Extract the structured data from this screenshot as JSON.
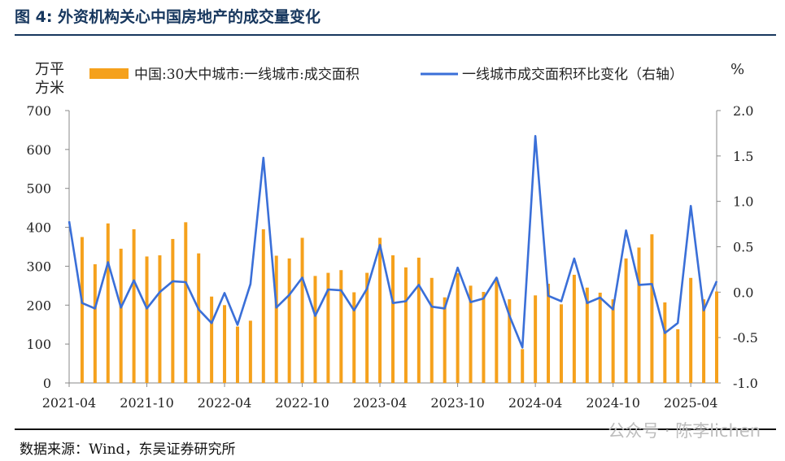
{
  "figure": {
    "title": "图 4:  外资机构关心中国房地产的成交量变化",
    "source": "数据来源：Wind，东吴证券研究所",
    "watermark": "公众号 · 陈李lichen"
  },
  "chart_data": {
    "type": "bar+line",
    "left_unit": [
      "万平",
      "方米"
    ],
    "right_unit": "%",
    "left_ylim": [
      0,
      700
    ],
    "left_ticks": [
      0,
      100,
      200,
      300,
      400,
      500,
      600,
      700
    ],
    "right_ylim": [
      -1.0,
      2.0
    ],
    "right_ticks": [
      "-1.0",
      "-0.5",
      "0.0",
      "0.5",
      "1.0",
      "1.5",
      "2.0"
    ],
    "x_tick_labels": [
      "2021-04",
      "2021-10",
      "2022-04",
      "2022-10",
      "2023-04",
      "2023-10",
      "2024-04",
      "2024-10",
      "2025-04"
    ],
    "x_tick_indices": [
      0,
      6,
      12,
      18,
      24,
      30,
      36,
      42,
      48
    ],
    "categories": [
      "2021-04",
      "2021-05",
      "2021-06",
      "2021-07",
      "2021-08",
      "2021-09",
      "2021-10",
      "2021-11",
      "2021-12",
      "2022-01",
      "2022-02",
      "2022-03",
      "2022-04",
      "2022-05",
      "2022-06",
      "2022-07",
      "2022-08",
      "2022-09",
      "2022-10",
      "2022-11",
      "2022-12",
      "2023-01",
      "2023-02",
      "2023-03",
      "2023-04",
      "2023-05",
      "2023-06",
      "2023-07",
      "2023-08",
      "2023-09",
      "2023-10",
      "2023-11",
      "2023-12",
      "2024-01",
      "2024-02",
      "2024-03",
      "2024-04",
      "2024-05",
      "2024-06",
      "2024-07",
      "2024-08",
      "2024-09",
      "2024-10",
      "2024-11",
      "2024-12",
      "2025-01",
      "2025-02",
      "2025-03",
      "2025-04",
      "2025-05",
      "2025-06"
    ],
    "series": [
      {
        "name": "中国:30大中城市:一线城市:成交面积",
        "type": "bar",
        "axis": "left",
        "color": "#f5a11c",
        "values": [
          null,
          375,
          305,
          410,
          345,
          395,
          325,
          328,
          370,
          413,
          333,
          222,
          200,
          145,
          160,
          395,
          327,
          320,
          373,
          275,
          283,
          290,
          233,
          283,
          373,
          328,
          297,
          322,
          270,
          220,
          282,
          250,
          234,
          270,
          215,
          87,
          225,
          255,
          202,
          278,
          245,
          232,
          215,
          320,
          348,
          382,
          207,
          138,
          270,
          215,
          235
        ]
      },
      {
        "name": "一线城市成交面积环比变化（右轴）",
        "type": "line",
        "axis": "right",
        "color": "#3a6fd8",
        "values": [
          0.78,
          -0.12,
          -0.18,
          0.33,
          -0.17,
          0.13,
          -0.18,
          0.0,
          0.12,
          0.11,
          -0.19,
          -0.34,
          -0.01,
          -0.36,
          0.09,
          1.48,
          -0.17,
          -0.03,
          0.16,
          -0.26,
          0.03,
          0.02,
          -0.2,
          0.04,
          0.52,
          -0.12,
          -0.1,
          0.08,
          -0.16,
          -0.18,
          0.27,
          -0.11,
          -0.07,
          0.16,
          -0.26,
          -0.61,
          1.72,
          -0.04,
          -0.1,
          0.37,
          -0.12,
          -0.06,
          -0.19,
          0.68,
          0.08,
          0.09,
          -0.45,
          -0.34,
          0.95,
          -0.2,
          0.12
        ]
      }
    ],
    "legend_position": "top",
    "grid": false
  }
}
